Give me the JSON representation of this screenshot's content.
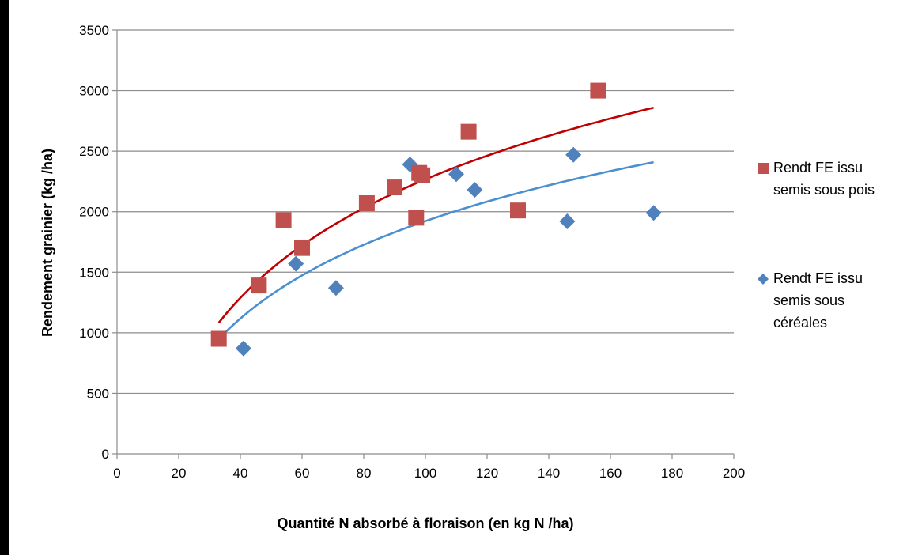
{
  "chart_data": {
    "type": "scatter",
    "title": "",
    "xlabel": "Quantité N absorbé à floraison (en kg N /ha)",
    "ylabel": "Rendement grainier (kg /ha)",
    "xlim": [
      0,
      200
    ],
    "ylim": [
      0,
      3500
    ],
    "xticks": [
      0,
      20,
      40,
      60,
      80,
      100,
      120,
      140,
      160,
      180,
      200
    ],
    "yticks": [
      0,
      500,
      1000,
      1500,
      2000,
      2500,
      3000,
      3500
    ],
    "grid": "horizontal",
    "legend_position": "right",
    "series": [
      {
        "name": "Rendt FE issu semis sous pois",
        "legend_lines": [
          "Rendt FE issu",
          "semis sous pois"
        ],
        "marker": "square",
        "color": "#c0504d",
        "trend_color": "#c00000",
        "trendline": "logarithmic",
        "trend_x_range": [
          33,
          174
        ],
        "x": [
          33,
          46,
          54,
          60,
          81,
          90,
          97,
          98,
          99,
          114,
          130,
          156
        ],
        "y": [
          950,
          1390,
          1930,
          1700,
          2070,
          2200,
          1950,
          2320,
          2300,
          2660,
          2010,
          3000
        ]
      },
      {
        "name": "Rendt FE issu semis sous céréales",
        "legend_lines": [
          "Rendt FE issu",
          "semis sous",
          "céréales"
        ],
        "marker": "diamond",
        "color": "#4f81bd",
        "trend_color": "#4a8fd0",
        "trendline": "logarithmic",
        "trend_x_range": [
          33,
          174
        ],
        "x": [
          41,
          58,
          71,
          95,
          110,
          116,
          146,
          148,
          174
        ],
        "y": [
          870,
          1570,
          1370,
          2390,
          2310,
          2180,
          1920,
          2470,
          1990
        ]
      }
    ]
  }
}
